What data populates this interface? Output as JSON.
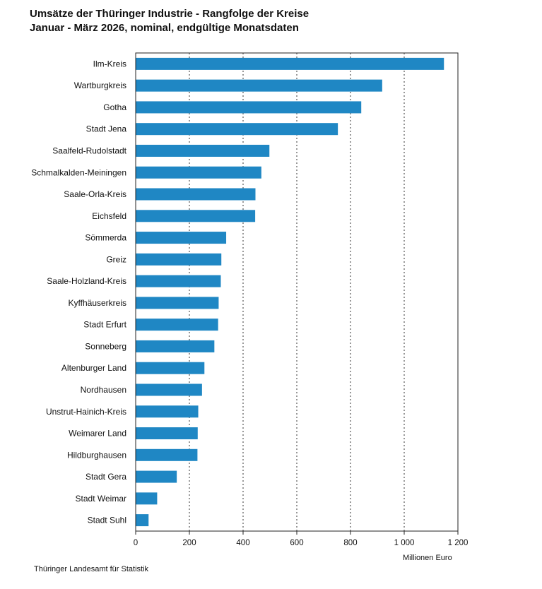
{
  "chart_data": {
    "type": "bar",
    "orientation": "horizontal",
    "title": "Umsätze der Thüringer Industrie - Rangfolge der Kreise",
    "subtitle": "Januar - März 2026, nominal, endgültige Monatsdaten",
    "categories": [
      "Ilm-Kreis",
      "Wartburgkreis",
      "Gotha",
      "Stadt Jena",
      "Saalfeld-Rudolstadt",
      "Schmalkalden-Meiningen",
      "Saale-Orla-Kreis",
      "Eichsfeld",
      "Sömmerda",
      "Greiz",
      "Saale-Holzland-Kreis",
      "Kyffhäuserkreis",
      "Stadt Erfurt",
      "Sonneberg",
      "Altenburger Land",
      "Nordhausen",
      "Unstrut-Hainich-Kreis",
      "Weimarer Land",
      "Hildburghausen",
      "Stadt Gera",
      "Stadt Weimar",
      "Stadt Suhl"
    ],
    "values": [
      1148,
      918,
      840,
      753,
      498,
      468,
      446,
      445,
      337,
      319,
      317,
      309,
      307,
      293,
      256,
      247,
      233,
      231,
      230,
      153,
      80,
      48
    ],
    "xlim": [
      0,
      1200
    ],
    "xticks": [
      0,
      200,
      400,
      600,
      800,
      1000,
      1200
    ],
    "xtick_labels": [
      "0",
      "200",
      "400",
      "600",
      "800",
      "1 000",
      "1 200"
    ],
    "xlabel": "Millionen Euro",
    "ylabel": "",
    "grid": "vertical dotted",
    "bar_color": "#1f87c4"
  },
  "source": "Thüringer Landesamt für Statistik"
}
